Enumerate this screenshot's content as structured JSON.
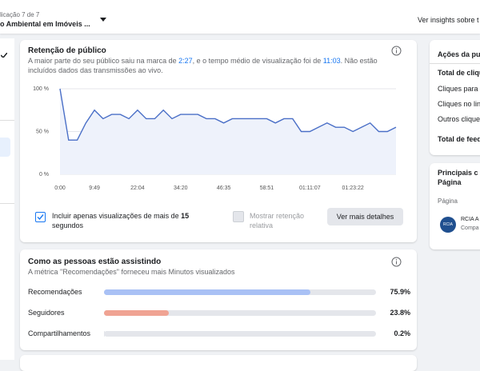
{
  "header": {
    "subtitle": "licação 7 de 7",
    "title": "o Ambiental em Imóveis ...",
    "link": "Ver insights sobre t"
  },
  "retention": {
    "title": "Retenção de público",
    "description": [
      "A maior parte do seu público saiu na marca de ",
      "2:27",
      ", e o tempo médio de visualização foi de ",
      "11:03",
      ". Não estão incluídos dados das transmissões ao vivo."
    ],
    "checkbox": [
      "Incluir apenas visualizações de mais de ",
      "15",
      " segundos"
    ],
    "relative": "Mostrar retenção relativa",
    "button": "Ver mais detalhes"
  },
  "chart_data": {
    "type": "line",
    "categories": [
      "0:00",
      null,
      null,
      null,
      "9:49",
      null,
      null,
      null,
      null,
      "22:04",
      null,
      null,
      null,
      null,
      "34:20",
      null,
      null,
      null,
      null,
      "46:35",
      null,
      null,
      null,
      null,
      "58:51",
      null,
      null,
      null,
      null,
      "01:11:07",
      null,
      null,
      null,
      null,
      "01:23:22",
      null,
      null,
      null,
      null,
      null
    ],
    "values": [
      100,
      40,
      40,
      60,
      75,
      65,
      70,
      70,
      65,
      75,
      65,
      65,
      75,
      65,
      70,
      70,
      70,
      65,
      65,
      60,
      65,
      65,
      65,
      65,
      65,
      60,
      65,
      65,
      50,
      50,
      55,
      60,
      55,
      55,
      50,
      55,
      60,
      50,
      50,
      55
    ],
    "color": "#4a6fc7",
    "ylim": [
      0,
      100
    ],
    "yticks": [
      {
        "value": 0,
        "label": "0 %"
      },
      {
        "value": 50,
        "label": "50 %"
      },
      {
        "value": 100,
        "label": "100 %"
      }
    ],
    "grid": true
  },
  "watching": {
    "title": "Como as pessoas estão assistindo",
    "subtitle": "A métrica \"Recomendações\" forneceu mais Minutos visualizados",
    "rows": [
      {
        "name": "Recomendações",
        "value": 75.9,
        "value_label": "75.9%",
        "color": "#a9c1f5"
      },
      {
        "name": "Seguidores",
        "value": 23.8,
        "value_label": "23.8%",
        "color": "#f0a393"
      },
      {
        "name": "Compartilhamentos",
        "value": 0.2,
        "value_label": "0.2%",
        "color": "#e4e6eb"
      }
    ]
  },
  "actions": {
    "title": "Ações da pu",
    "items": [
      "Total de cliqu",
      "Cliques para",
      "Cliques no lin",
      "Outros clique",
      "Total de feed"
    ]
  },
  "top": {
    "title": "Principais c",
    "title2": "Página",
    "label": "Página",
    "logo": "RCIA",
    "name": "RCIA A",
    "sub": "Compa"
  }
}
